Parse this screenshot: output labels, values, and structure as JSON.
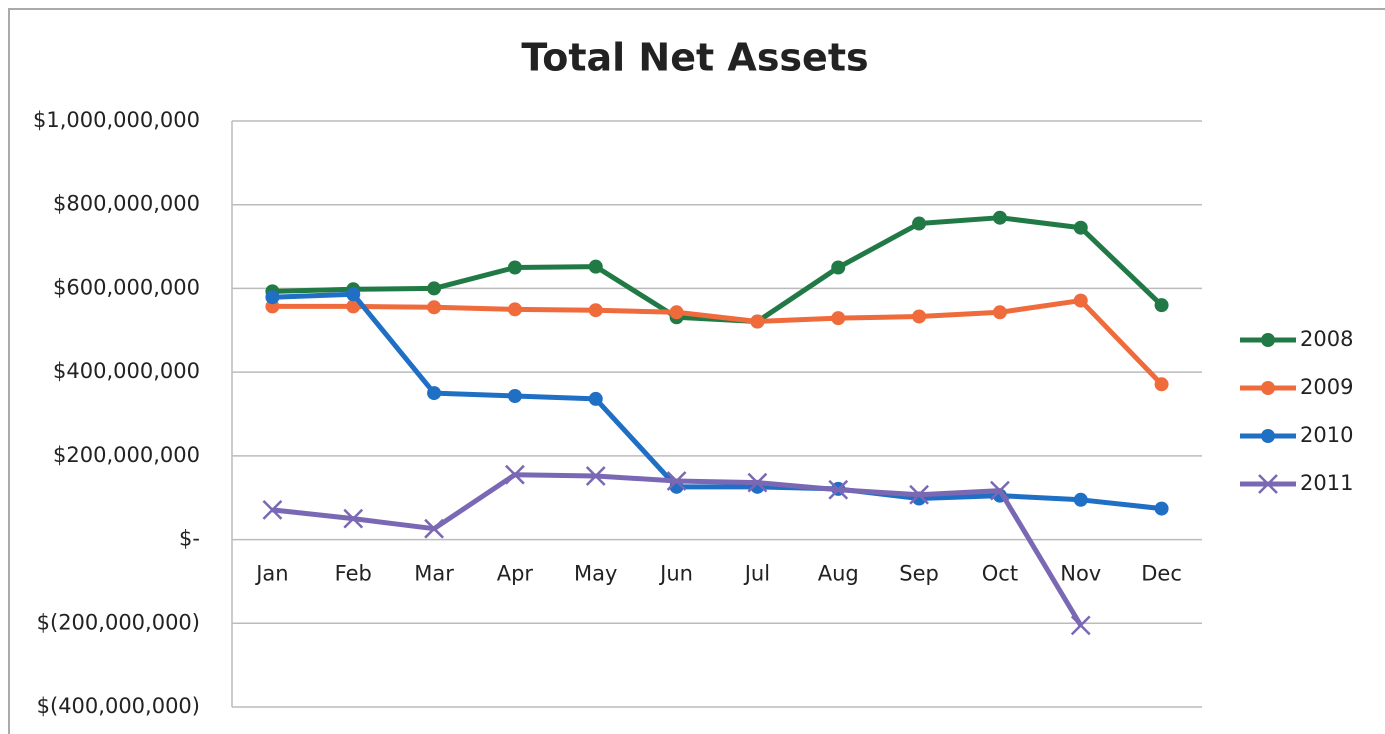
{
  "chart_data": {
    "type": "line",
    "title": "Total Net Assets",
    "categories": [
      "Jan",
      "Feb",
      "Mar",
      "Apr",
      "May",
      "Jun",
      "Jul",
      "Aug",
      "Sep",
      "Oct",
      "Nov",
      "Dec"
    ],
    "series": [
      {
        "name": "2008",
        "color": "#217a45",
        "marker": "circle",
        "values": [
          593000000,
          598000000,
          600000000,
          650000000,
          652000000,
          531000000,
          521000000,
          650000000,
          755000000,
          769000000,
          745000000,
          560000000
        ]
      },
      {
        "name": "2009",
        "color": "#ef6b3c",
        "marker": "circle",
        "values": [
          557000000,
          557000000,
          555000000,
          550000000,
          548000000,
          543000000,
          521000000,
          529000000,
          533000000,
          543000000,
          571000000,
          371000000
        ]
      },
      {
        "name": "2010",
        "color": "#1f6fc5",
        "marker": "circle",
        "values": [
          579000000,
          586000000,
          350000000,
          343000000,
          336000000,
          126000000,
          126000000,
          121000000,
          98000000,
          105000000,
          95000000,
          74000000
        ]
      },
      {
        "name": "2011",
        "color": "#7b68b5",
        "marker": "x",
        "values": [
          71000000,
          50000000,
          26000000,
          155000000,
          152000000,
          140000000,
          136000000,
          119000000,
          107000000,
          117000000,
          -205000000,
          null
        ]
      }
    ],
    "ylim": [
      -400000000,
      1000000000
    ],
    "yticks": [
      {
        "value": -400000000,
        "label": "$(400,000,000)"
      },
      {
        "value": -200000000,
        "label": "$(200,000,000)"
      },
      {
        "value": 0,
        "label": "$-"
      },
      {
        "value": 200000000,
        "label": "$200,000,000"
      },
      {
        "value": 400000000,
        "label": "$400,000,000"
      },
      {
        "value": 600000000,
        "label": "$600,000,000"
      },
      {
        "value": 800000000,
        "label": "$800,000,000"
      },
      {
        "value": 1000000000,
        "label": "$1,000,000,000"
      }
    ],
    "grid": true,
    "legend": "right"
  }
}
